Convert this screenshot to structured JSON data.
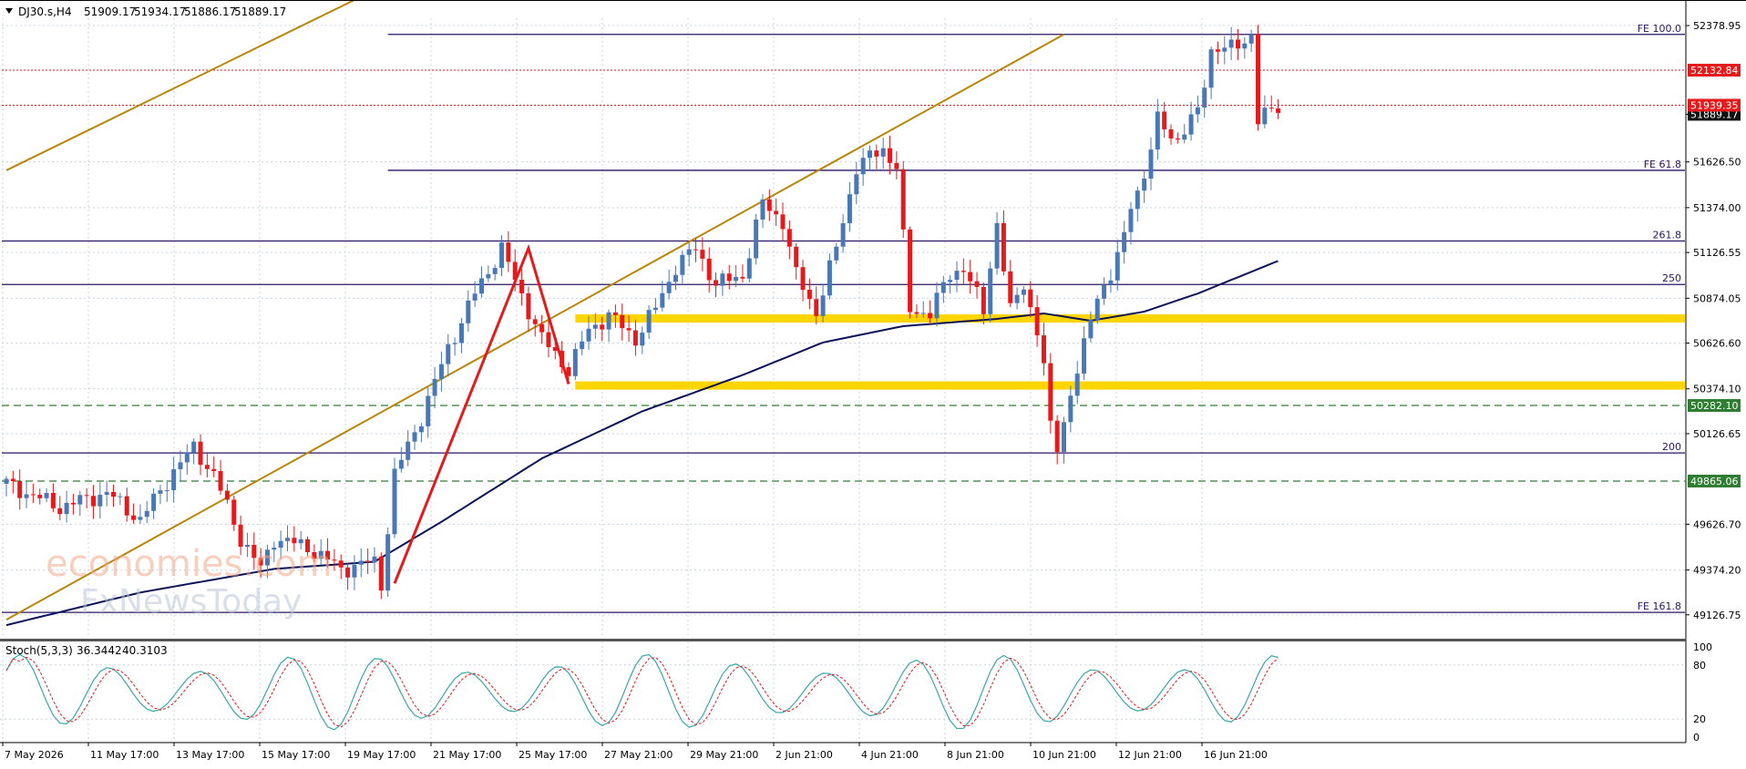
{
  "header": {
    "symbol": "DJ30.s,H4",
    "open": "51909.17",
    "high": "51934.17",
    "low": "51886.17",
    "close": "51889.17"
  },
  "watermark": {
    "line1": "economies.com",
    "line2": "FxNewsToday"
  },
  "colors": {
    "background": "#ffffff",
    "grid": "#c9d4df",
    "bull": "#4a78b4",
    "bear": "#e41a1c",
    "ma": "#0b1257",
    "fibo": "#2b1463",
    "channel": "#b8860b",
    "zone": "#ffd500",
    "zigzag": "#e41a1c",
    "red_level": "#e41a1c",
    "green_level": "#2e7d32",
    "current": "#111111",
    "stoch_main": "#3aa7a7",
    "stoch_signal": "#e41a1c"
  },
  "chart_data": {
    "type": "candlestick",
    "timeframe": "H4",
    "grid": true,
    "ylim": [
      49000,
      52520
    ],
    "price_ticks": [
      "52378.95",
      "52132.84",
      "51939.35",
      "51889.17",
      "51626.50",
      "51374.00",
      "51126.55",
      "50874.05",
      "50626.60",
      "50374.10",
      "50282.10",
      "50126.65",
      "49865.06",
      "49626.70",
      "49374.20",
      "49126.75"
    ],
    "time_labels": [
      "7 May 2026",
      "11 May 17:00",
      "13 May 17:00",
      "15 May 17:00",
      "19 May 17:00",
      "21 May 17:00",
      "25 May 17:00",
      "27 May 21:00",
      "29 May 21:00",
      "2 Jun 21:00",
      "4 Jun 21:00",
      "8 Jun 21:00",
      "10 Jun 21:00",
      "12 Jun 21:00",
      "16 Jun 21:00"
    ],
    "candle_keypoints": [
      [
        0,
        49850
      ],
      [
        8,
        49720
      ],
      [
        15,
        49800
      ],
      [
        20,
        49650
      ],
      [
        25,
        49920
      ],
      [
        28,
        50050
      ],
      [
        31,
        49900
      ],
      [
        35,
        49550
      ],
      [
        38,
        49380
      ],
      [
        40,
        49550
      ],
      [
        45,
        49500
      ],
      [
        50,
        49380
      ],
      [
        55,
        49420
      ],
      [
        56,
        49300
      ],
      [
        58,
        49900
      ],
      [
        62,
        50220
      ],
      [
        66,
        50600
      ],
      [
        70,
        50900
      ],
      [
        74,
        51150
      ],
      [
        76,
        50970
      ],
      [
        80,
        50650
      ],
      [
        84,
        50480
      ],
      [
        87,
        50700
      ],
      [
        90,
        50780
      ],
      [
        94,
        50650
      ],
      [
        97,
        50820
      ],
      [
        100,
        51050
      ],
      [
        103,
        51150
      ],
      [
        106,
        50950
      ],
      [
        110,
        51000
      ],
      [
        113,
        51400
      ],
      [
        116,
        51300
      ],
      [
        118,
        51000
      ],
      [
        121,
        50800
      ],
      [
        124,
        51150
      ],
      [
        127,
        51600
      ],
      [
        131,
        51700
      ],
      [
        133,
        51600
      ],
      [
        135,
        50800
      ],
      [
        138,
        50800
      ],
      [
        141,
        51000
      ],
      [
        143,
        51050
      ],
      [
        146,
        50800
      ],
      [
        148,
        51300
      ],
      [
        150,
        50800
      ],
      [
        152,
        50950
      ],
      [
        154,
        50700
      ],
      [
        155,
        50500
      ],
      [
        156,
        50150
      ],
      [
        157,
        50050
      ],
      [
        159,
        50350
      ],
      [
        161,
        50600
      ],
      [
        163,
        50900
      ],
      [
        165,
        51000
      ],
      [
        167,
        51200
      ],
      [
        168,
        51400
      ],
      [
        170,
        51550
      ],
      [
        172,
        51850
      ],
      [
        175,
        51750
      ],
      [
        178,
        51900
      ],
      [
        180,
        52250
      ],
      [
        183,
        52250
      ],
      [
        186,
        52330
      ],
      [
        187,
        51850
      ],
      [
        190,
        51939
      ]
    ],
    "levels": [
      {
        "label": "FE 100.0",
        "price": 52330,
        "kind": "fibo"
      },
      {
        "label": "52132.84",
        "price": 52132.84,
        "kind": "red"
      },
      {
        "label": "51939.35",
        "price": 51939.35,
        "kind": "red"
      },
      {
        "label": "FE 61.8",
        "price": 51580,
        "kind": "fibo"
      },
      {
        "label": "261.8",
        "price": 51190,
        "kind": "fibo"
      },
      {
        "label": "250",
        "price": 50950,
        "kind": "fibo"
      },
      {
        "label": "50282.10",
        "price": 50282.1,
        "kind": "green"
      },
      {
        "label": "200",
        "price": 50020,
        "kind": "fibo"
      },
      {
        "label": "49865.06",
        "price": 49865.06,
        "kind": "green"
      },
      {
        "label": "FE 161.8",
        "price": 49140,
        "kind": "fibo"
      }
    ],
    "zones": [
      {
        "price": 50760,
        "x_start": 85
      },
      {
        "price": 50390,
        "x_start": 85
      }
    ],
    "channel_lines": [
      [
        [
          0,
          51580
        ],
        [
          52,
          52520
        ]
      ],
      [
        [
          0,
          49100
        ],
        [
          158,
          52330
        ]
      ]
    ],
    "zigzag": [
      [
        58,
        49300
      ],
      [
        78,
        51150
      ],
      [
        84,
        50400
      ]
    ],
    "ma_keypoints": [
      [
        0,
        49070
      ],
      [
        20,
        49250
      ],
      [
        40,
        49380
      ],
      [
        55,
        49420
      ],
      [
        65,
        49640
      ],
      [
        80,
        49990
      ],
      [
        95,
        50250
      ],
      [
        110,
        50450
      ],
      [
        122,
        50630
      ],
      [
        134,
        50720
      ],
      [
        148,
        50760
      ],
      [
        155,
        50790
      ],
      [
        162,
        50750
      ],
      [
        170,
        50800
      ],
      [
        178,
        50900
      ],
      [
        186,
        51020
      ],
      [
        190,
        51080
      ]
    ],
    "current_price": "51889.17",
    "stoch": {
      "label": "Stoch(5,3,3)",
      "main": "36.3442",
      "signal": "40.3103",
      "ticks": [
        "100",
        "80",
        "20",
        "0"
      ]
    }
  }
}
